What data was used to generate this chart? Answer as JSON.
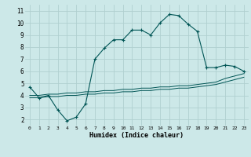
{
  "xlabel": "Humidex (Indice chaleur)",
  "bg_color": "#cce8e8",
  "grid_color": "#b0d0d0",
  "line_color": "#005555",
  "xlim": [
    -0.5,
    23.5
  ],
  "ylim": [
    1.5,
    11.5
  ],
  "xticks": [
    0,
    1,
    2,
    3,
    4,
    5,
    6,
    7,
    8,
    9,
    10,
    11,
    12,
    13,
    14,
    15,
    16,
    17,
    18,
    19,
    20,
    21,
    22,
    23
  ],
  "yticks": [
    2,
    3,
    4,
    5,
    6,
    7,
    8,
    9,
    10,
    11
  ],
  "series0_x": [
    0,
    1,
    2,
    3,
    4,
    5,
    6,
    7,
    8,
    9,
    10,
    11,
    12,
    13,
    14,
    15,
    16,
    17,
    18,
    19,
    20,
    21,
    22,
    23
  ],
  "series0_y": [
    4.7,
    3.8,
    4.0,
    2.8,
    1.9,
    2.2,
    3.3,
    7.0,
    7.9,
    8.6,
    8.6,
    9.4,
    9.4,
    9.0,
    10.0,
    10.7,
    10.6,
    9.9,
    9.3,
    6.3,
    6.3,
    6.5,
    6.4,
    6.0
  ],
  "series1_x": [
    0,
    1,
    2,
    3,
    4,
    5,
    6,
    7,
    8,
    9,
    10,
    11,
    12,
    13,
    14,
    15,
    16,
    17,
    18,
    19,
    20,
    21,
    22,
    23
  ],
  "series1_y": [
    4.0,
    4.0,
    4.1,
    4.1,
    4.2,
    4.2,
    4.3,
    4.3,
    4.4,
    4.4,
    4.5,
    4.5,
    4.6,
    4.6,
    4.7,
    4.7,
    4.8,
    4.8,
    4.9,
    5.0,
    5.1,
    5.4,
    5.6,
    5.8
  ],
  "series2_x": [
    0,
    1,
    2,
    3,
    4,
    5,
    6,
    7,
    8,
    9,
    10,
    11,
    12,
    13,
    14,
    15,
    16,
    17,
    18,
    19,
    20,
    21,
    22,
    23
  ],
  "series2_y": [
    3.8,
    3.8,
    3.9,
    3.9,
    4.0,
    4.0,
    4.1,
    4.1,
    4.2,
    4.2,
    4.3,
    4.3,
    4.4,
    4.4,
    4.5,
    4.5,
    4.6,
    4.6,
    4.7,
    4.8,
    4.9,
    5.1,
    5.3,
    5.5
  ]
}
